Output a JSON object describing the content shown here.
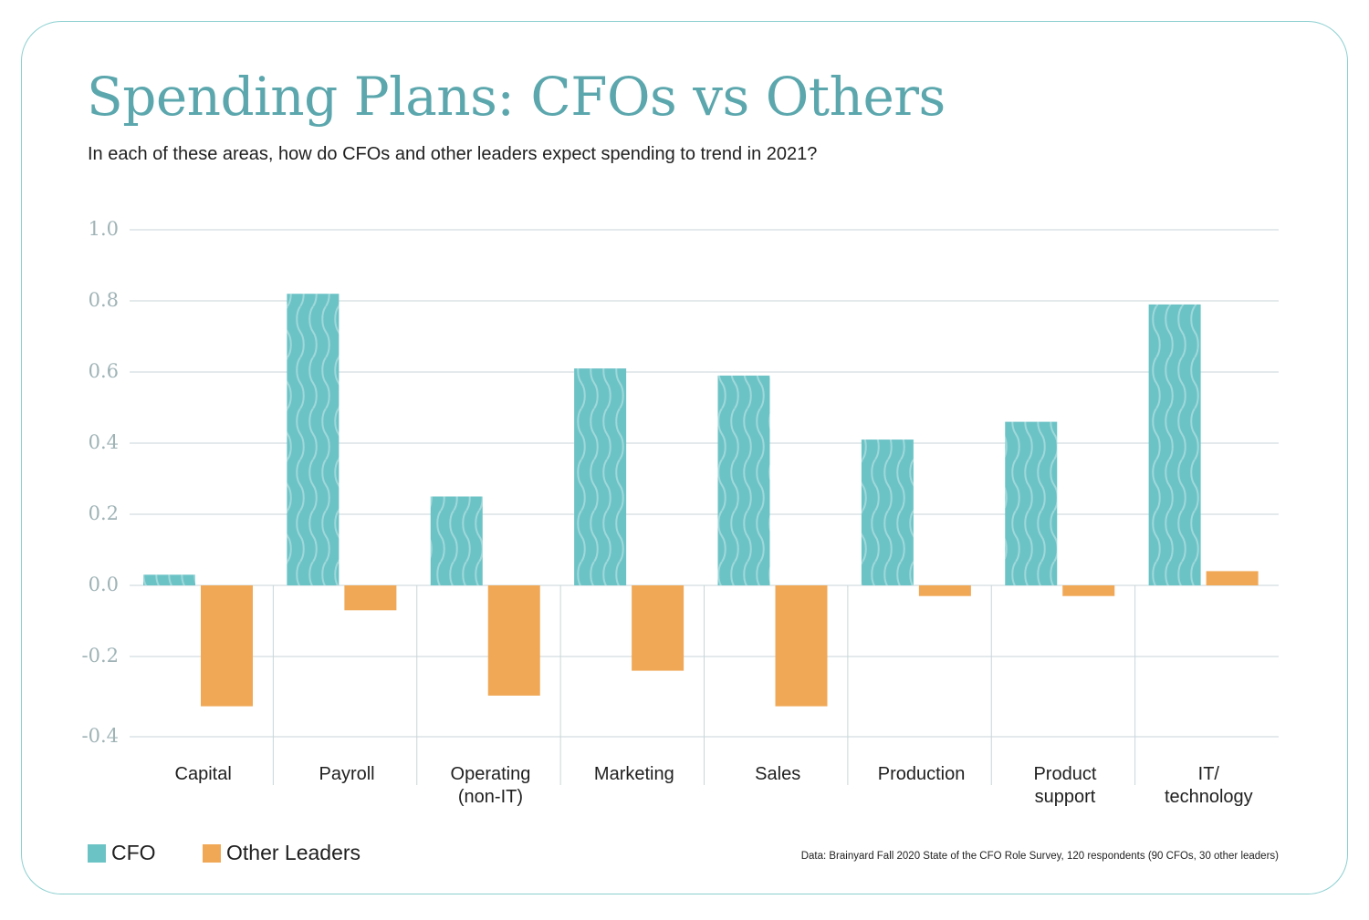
{
  "title": "Spending Plans: CFOs vs Others",
  "subtitle": "In each of these areas, how do CFOs and other leaders expect spending to trend in 2021?",
  "source": "Data: Brainyard Fall 2020 State of the CFO Role Survey, 120 respondents (90 CFOs, 30 other leaders)",
  "legend": {
    "cfo": "CFO",
    "other": "Other Leaders"
  },
  "colors": {
    "cfo": "#6cc3c6",
    "other": "#f0a856",
    "accent": "#5ba7ad",
    "border": "#8ccfd0"
  },
  "chart_data": {
    "type": "bar",
    "title": "Spending Plans: CFOs vs Others",
    "categories": [
      [
        "Capital"
      ],
      [
        "Payroll"
      ],
      [
        "Operating",
        "(non-IT)"
      ],
      [
        "Marketing"
      ],
      [
        "Sales"
      ],
      [
        "Production"
      ],
      [
        "Product",
        "support"
      ],
      [
        "IT/",
        "technology"
      ]
    ],
    "series": [
      {
        "name": "CFO",
        "values": [
          0.03,
          0.82,
          0.25,
          0.61,
          0.59,
          0.41,
          0.46,
          0.79
        ]
      },
      {
        "name": "Other Leaders",
        "values": [
          -0.34,
          -0.07,
          -0.31,
          -0.24,
          -0.34,
          -0.03,
          -0.03,
          0.04
        ]
      }
    ],
    "yticks": [
      "1.0",
      "0.8",
      "0.6",
      "0.4",
      "0.2",
      "0.0",
      "-0.2",
      "-0.4"
    ],
    "ylim": [
      -0.42,
      1.0
    ],
    "xlabel": "",
    "ylabel": "",
    "grid": true,
    "legend": "bottom-left"
  }
}
